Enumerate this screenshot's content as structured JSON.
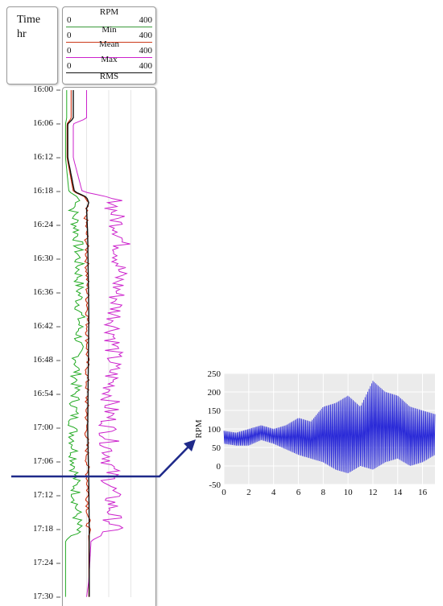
{
  "time_box": {
    "line1": "Time",
    "line2": "hr"
  },
  "legend": [
    {
      "name": "RPM",
      "min": "0",
      "max": "400",
      "color": "#3a9a3a"
    },
    {
      "name": "Min",
      "min": "0",
      "max": "400",
      "color": "#cc3a1a"
    },
    {
      "name": "Mean",
      "min": "0",
      "max": "400",
      "color": "#cc22cc"
    },
    {
      "name": "Max",
      "min": "0",
      "max": "400",
      "color": "#111111"
    },
    {
      "name": "RMS"
    }
  ],
  "colors": {
    "min": "#22aa22",
    "mean": "#cc2200",
    "max": "#cc22cc",
    "rms": "#111111",
    "arrow": "#1f2a8a",
    "detail": "#2a2ad8",
    "detail_bg": "#ebebeb"
  },
  "chart_data": [
    {
      "type": "line",
      "orientation": "vertical-time",
      "y_ticks": [
        "16:00",
        "16:06",
        "16:12",
        "16:18",
        "16:24",
        "16:30",
        "16:36",
        "16:42",
        "16:48",
        "16:54",
        "17:00",
        "17:06",
        "17:12",
        "17:18",
        "17:24",
        "17:30"
      ],
      "x_range": [
        0,
        400
      ],
      "series": [
        {
          "name": "Min",
          "t": [
            0,
            5,
            6,
            12,
            18,
            19,
            20,
            21,
            26,
            40,
            60,
            70,
            78,
            80,
            87,
            90
          ],
          "values": [
            10,
            10,
            5,
            5,
            20,
            60,
            70,
            40,
            60,
            70,
            40,
            50,
            60,
            5,
            5,
            5
          ]
        },
        {
          "name": "Mean",
          "t": [
            0,
            5,
            6,
            12,
            18,
            19,
            20,
            21,
            26,
            40,
            60,
            70,
            78,
            80,
            87,
            90
          ],
          "values": [
            30,
            30,
            12,
            12,
            40,
            95,
            105,
            95,
            100,
            105,
            100,
            105,
            108,
            110,
            110,
            110
          ]
        },
        {
          "name": "Max",
          "t": [
            0,
            5,
            6,
            12,
            18,
            19,
            20,
            21,
            26,
            40,
            60,
            70,
            78,
            80,
            87,
            90
          ],
          "values": [
            100,
            100,
            40,
            40,
            80,
            200,
            240,
            220,
            260,
            230,
            200,
            210,
            220,
            120,
            110,
            100
          ]
        },
        {
          "name": "RMS",
          "t": [
            0,
            5,
            6,
            12,
            18,
            19,
            20,
            21,
            26,
            40,
            60,
            70,
            78,
            80,
            87,
            90
          ],
          "values": [
            40,
            40,
            15,
            15,
            45,
            100,
            110,
            100,
            105,
            110,
            105,
            110,
            112,
            112,
            112,
            112
          ]
        }
      ]
    },
    {
      "type": "line",
      "xlabel": "",
      "ylabel": "RPM",
      "x_ticks": [
        "0",
        "2",
        "4",
        "6",
        "8",
        "10",
        "12",
        "14",
        "16"
      ],
      "y_ticks": [
        "-50",
        "0",
        "50",
        "100",
        "150",
        "200",
        "250"
      ],
      "xlim": [
        0,
        17
      ],
      "ylim": [
        -50,
        250
      ],
      "grid": true,
      "envelope": {
        "x": [
          0,
          1,
          2,
          3,
          4,
          5,
          6,
          7,
          8,
          9,
          10,
          11,
          12,
          13,
          14,
          15,
          16,
          17
        ],
        "upper": [
          95,
          90,
          100,
          110,
          100,
          110,
          130,
          120,
          160,
          170,
          190,
          160,
          230,
          200,
          190,
          160,
          150,
          140
        ],
        "lower": [
          60,
          55,
          55,
          70,
          60,
          45,
          30,
          20,
          10,
          -10,
          -20,
          0,
          -10,
          10,
          20,
          0,
          10,
          30
        ]
      }
    }
  ]
}
